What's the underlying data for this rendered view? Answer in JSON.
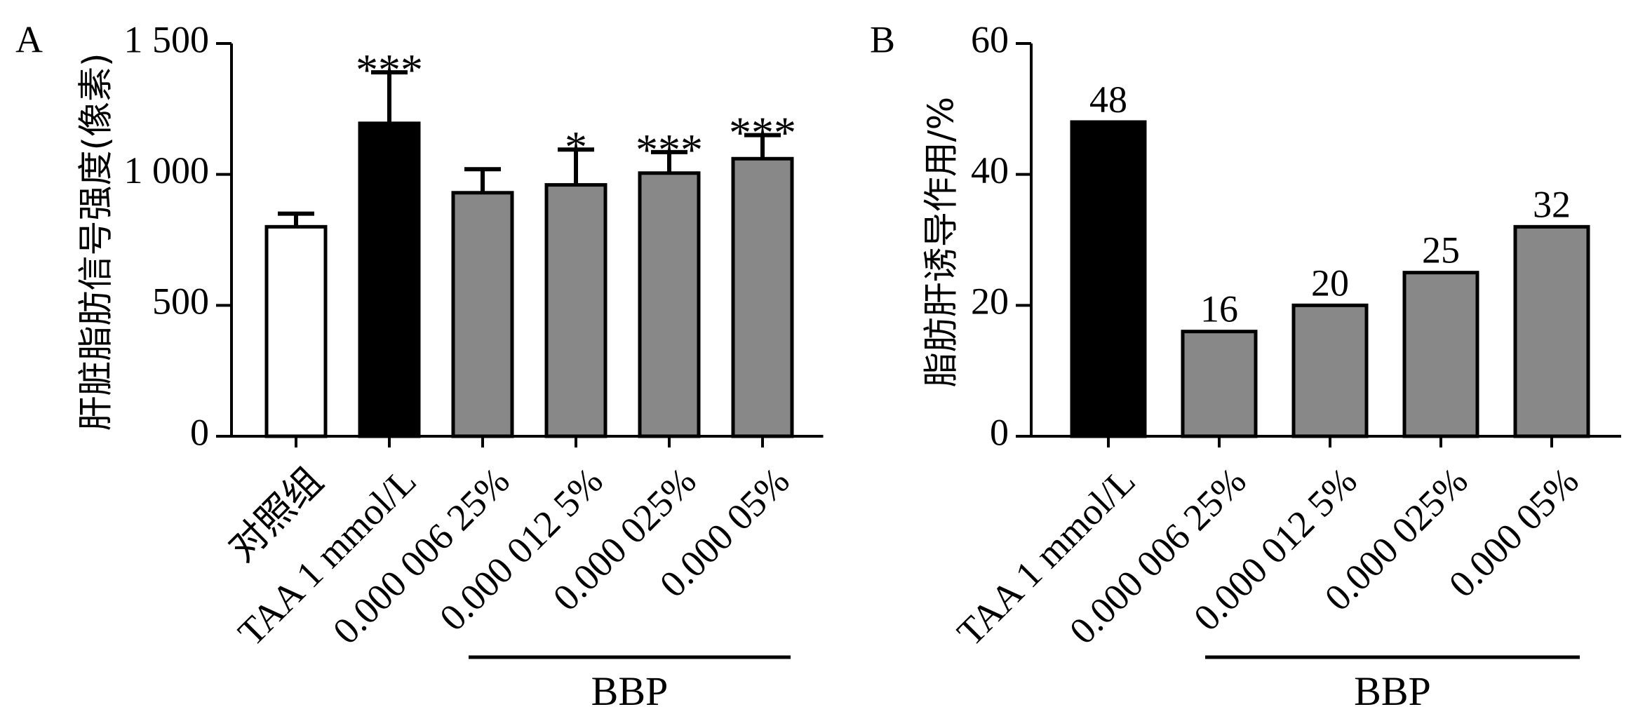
{
  "chart_data": [
    {
      "type": "bar",
      "panel_label": "A",
      "ylabel": "肝脏脂肪信号强度(像素)",
      "ylim": [
        0,
        1500
      ],
      "yticks": [
        {
          "value": 0,
          "label": "0"
        },
        {
          "value": 500,
          "label": "500"
        },
        {
          "value": 1000,
          "label": "1 000"
        },
        {
          "value": 1500,
          "label": "1 500"
        }
      ],
      "categories": [
        "对照组",
        "TAA 1 mmol/L",
        "0.000 006 25%",
        "0.000 012 5%",
        "0.000 025%",
        "0.000 05%"
      ],
      "values": [
        800,
        1195,
        930,
        960,
        1005,
        1060
      ],
      "errors": [
        50,
        195,
        90,
        135,
        80,
        90
      ],
      "bar_colors": [
        "#ffffff",
        "#000000",
        "#888888",
        "#888888",
        "#888888",
        "#888888"
      ],
      "significance": [
        "",
        "***",
        "",
        "*",
        "***",
        "***"
      ],
      "group_label": {
        "text": "BBP",
        "from_category": 2,
        "to_category": 5
      }
    },
    {
      "type": "bar",
      "panel_label": "B",
      "ylabel": "脂肪肝诱导作用/%",
      "ylim": [
        0,
        60
      ],
      "yticks": [
        {
          "value": 0,
          "label": "0"
        },
        {
          "value": 20,
          "label": "20"
        },
        {
          "value": 40,
          "label": "40"
        },
        {
          "value": 60,
          "label": "60"
        }
      ],
      "categories": [
        "TAA 1 mmol/L",
        "0.000 006 25%",
        "0.000 012 5%",
        "0.000 025%",
        "0.000 05%"
      ],
      "values": [
        48,
        16,
        20,
        25,
        32
      ],
      "data_labels": [
        "48",
        "16",
        "20",
        "25",
        "32"
      ],
      "bar_colors": [
        "#000000",
        "#888888",
        "#888888",
        "#888888",
        "#888888"
      ],
      "group_label": {
        "text": "BBP",
        "from_category": 1,
        "to_category": 4
      }
    }
  ]
}
